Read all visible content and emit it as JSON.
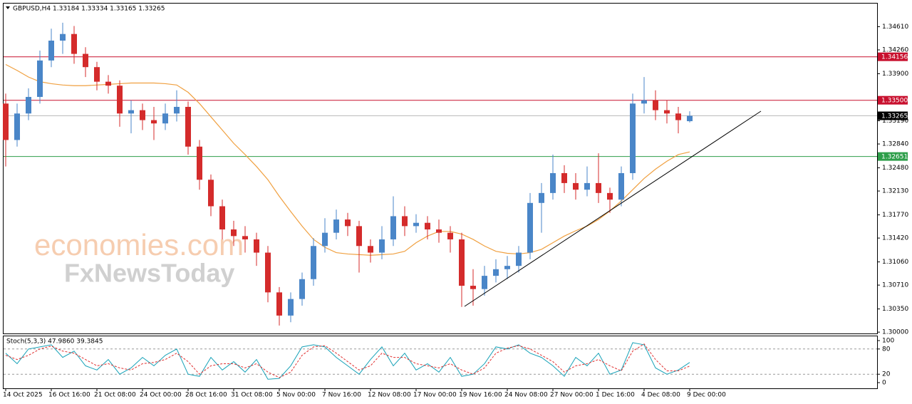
{
  "chart_data": [
    {
      "type": "candlestick",
      "title": "GBPUSD,H4  1.33184 1.33334 1.33165 1.33265",
      "watermark": [
        "economies.com",
        "FxNewsToday"
      ],
      "categories": [
        "14 Oct 2025",
        null,
        null,
        null,
        "16 Oct 16:00",
        null,
        null,
        null,
        "21 Oct 08:00",
        null,
        null,
        null,
        "24 Oct 00:00",
        null,
        null,
        null,
        "28 Oct 16:00",
        null,
        null,
        null,
        "31 Oct 08:00",
        null,
        null,
        null,
        "5 Nov 00:00",
        null,
        null,
        null,
        "7 Nov 16:00",
        null,
        null,
        null,
        "12 Nov 08:00",
        null,
        null,
        null,
        "17 Nov 00:00",
        null,
        null,
        null,
        "19 Nov 16:00",
        null,
        null,
        null,
        "24 Nov 08:00",
        null,
        null,
        null,
        "27 Nov 00:00",
        null,
        null,
        null,
        "1 Dec 16:00",
        null,
        null,
        null,
        "4 Dec 08:00",
        null,
        null,
        null,
        "9 Dec 00:00"
      ],
      "open": [
        1.3345,
        1.329,
        1.333,
        1.3355,
        1.341,
        1.344,
        1.345,
        1.342,
        1.34,
        1.3378,
        1.3372,
        1.333,
        1.3335,
        1.332,
        1.3315,
        1.333,
        1.334,
        1.328,
        1.323,
        1.319,
        1.3155,
        1.3145,
        1.314,
        1.312,
        1.306,
        1.3025,
        1.305,
        1.308,
        1.313,
        1.315,
        1.317,
        1.316,
        1.313,
        1.312,
        1.314,
        1.3175,
        1.316,
        1.3165,
        1.3155,
        1.315,
        1.314,
        1.307,
        1.3065,
        1.3085,
        1.3095,
        1.31,
        1.312,
        1.3195,
        1.321,
        1.324,
        1.3225,
        1.3215,
        1.3225,
        1.321,
        1.32,
        1.324,
        1.3345,
        1.335,
        1.3335,
        1.333,
        1.33184
      ],
      "high": [
        1.336,
        1.3345,
        1.3368,
        1.3425,
        1.3458,
        1.3467,
        1.3462,
        1.343,
        1.3408,
        1.3388,
        1.338,
        1.335,
        1.3345,
        1.334,
        1.3345,
        1.3365,
        1.3348,
        1.329,
        1.3238,
        1.32,
        1.3168,
        1.316,
        1.315,
        1.313,
        1.3068,
        1.306,
        1.309,
        1.3142,
        1.3172,
        1.3185,
        1.318,
        1.3168,
        1.314,
        1.316,
        1.3205,
        1.319,
        1.3178,
        1.3175,
        1.317,
        1.316,
        1.315,
        1.3095,
        1.31,
        1.311,
        1.3115,
        1.313,
        1.321,
        1.3225,
        1.3268,
        1.3252,
        1.324,
        1.325,
        1.327,
        1.3218,
        1.325,
        1.336,
        1.3385,
        1.3365,
        1.335,
        1.334,
        1.33334
      ],
      "low": [
        1.325,
        1.328,
        1.332,
        1.3345,
        1.34,
        1.342,
        1.3405,
        1.3385,
        1.3365,
        1.336,
        1.331,
        1.33,
        1.3305,
        1.329,
        1.3305,
        1.3318,
        1.3268,
        1.3215,
        1.3175,
        1.314,
        1.313,
        1.312,
        1.31,
        1.3045,
        1.301,
        1.3015,
        1.304,
        1.307,
        1.312,
        1.314,
        1.3145,
        1.309,
        1.3105,
        1.311,
        1.313,
        1.3145,
        1.315,
        1.314,
        1.3135,
        1.312,
        1.3038,
        1.304,
        1.3055,
        1.3075,
        1.308,
        1.309,
        1.311,
        1.315,
        1.32,
        1.321,
        1.32,
        1.3205,
        1.3195,
        1.318,
        1.319,
        1.323,
        1.333,
        1.332,
        1.3315,
        1.33,
        1.33165
      ],
      "close": [
        1.329,
        1.333,
        1.3355,
        1.341,
        1.344,
        1.345,
        1.342,
        1.34,
        1.3378,
        1.3372,
        1.333,
        1.3335,
        1.332,
        1.3315,
        1.333,
        1.334,
        1.328,
        1.323,
        1.319,
        1.3155,
        1.3145,
        1.314,
        1.312,
        1.306,
        1.3025,
        1.305,
        1.308,
        1.313,
        1.315,
        1.317,
        1.316,
        1.313,
        1.312,
        1.314,
        1.3175,
        1.316,
        1.3165,
        1.3155,
        1.315,
        1.314,
        1.307,
        1.3065,
        1.3085,
        1.3095,
        1.31,
        1.312,
        1.3195,
        1.321,
        1.324,
        1.3225,
        1.3215,
        1.3225,
        1.321,
        1.32,
        1.324,
        1.3345,
        1.335,
        1.3335,
        1.333,
        1.332,
        1.33265
      ],
      "up_color": "#4a86c8",
      "down_color": "#d42b2b",
      "ma": {
        "color": "#f0a040",
        "values": [
          1.3404,
          1.3395,
          1.3385,
          1.3378,
          1.3375,
          1.3373,
          1.3372,
          1.3372,
          1.3373,
          1.3374,
          1.3375,
          1.3376,
          1.3376,
          1.3376,
          1.3375,
          1.3373,
          1.3362,
          1.3345,
          1.3325,
          1.3305,
          1.3285,
          1.3268,
          1.325,
          1.323,
          1.3205,
          1.3182,
          1.316,
          1.314,
          1.3128,
          1.312,
          1.3118,
          1.3117,
          1.3116,
          1.3117,
          1.3118,
          1.3122,
          1.3135,
          1.3145,
          1.3152,
          1.3152,
          1.3148,
          1.314,
          1.313,
          1.3122,
          1.3119,
          1.3118,
          1.312,
          1.3125,
          1.3135,
          1.3145,
          1.3153,
          1.316,
          1.317,
          1.3183,
          1.3198,
          1.3215,
          1.3232,
          1.3246,
          1.3258,
          1.3268,
          1.3272
        ]
      },
      "levels": [
        {
          "value": 1.34156,
          "label": "1.34156",
          "color": "#c8102e"
        },
        {
          "value": 1.335,
          "label": "1.33500",
          "color": "#c8102e"
        },
        {
          "value": 1.33265,
          "label": "1.33265",
          "color": "#000000"
        },
        {
          "value": 1.32651,
          "label": "1.32651",
          "color": "#2e9e4a"
        }
      ],
      "ylim": [
        1.2998,
        1.3497
      ],
      "yticks": [
        {
          "value": 1.3461,
          "label": "1.34610"
        },
        {
          "value": 1.3426,
          "label": "1.34260"
        },
        {
          "value": 1.339,
          "label": "1.33900"
        },
        {
          "value": 1.3319,
          "label": "1.33190"
        },
        {
          "value": 1.3284,
          "label": "1.32840"
        },
        {
          "value": 1.3248,
          "label": "1.32480"
        },
        {
          "value": 1.3213,
          "label": "1.32130"
        },
        {
          "value": 1.3177,
          "label": "1.31770"
        },
        {
          "value": 1.3142,
          "label": "1.31420"
        },
        {
          "value": 1.3106,
          "label": "1.31060"
        },
        {
          "value": 1.3071,
          "label": "1.30710"
        },
        {
          "value": 1.3035,
          "label": "1.30350"
        },
        {
          "value": 1.3,
          "label": "1.30000"
        }
      ]
    },
    {
      "type": "stochastic",
      "title": "Stoch(5,3,3) 47.9860 39.3845",
      "series": [
        {
          "color": "#17a2b8",
          "values": [
            70,
            45,
            80,
            85,
            90,
            60,
            75,
            40,
            30,
            55,
            20,
            35,
            60,
            40,
            65,
            80,
            20,
            15,
            60,
            30,
            50,
            25,
            55,
            8,
            10,
            40,
            85,
            90,
            85,
            60,
            40,
            20,
            55,
            85,
            40,
            70,
            30,
            45,
            25,
            60,
            15,
            20,
            45,
            85,
            80,
            90,
            70,
            60,
            40,
            15,
            60,
            40,
            70,
            20,
            30,
            95,
            90,
            35,
            20,
            30,
            47.986
          ]
        },
        {
          "color": "#e03030",
          "dashed": true,
          "values": [
            65,
            55,
            65,
            80,
            87,
            75,
            70,
            55,
            40,
            45,
            35,
            30,
            45,
            48,
            55,
            70,
            50,
            20,
            40,
            45,
            45,
            35,
            45,
            25,
            12,
            25,
            65,
            85,
            88,
            70,
            50,
            30,
            40,
            70,
            60,
            60,
            45,
            40,
            35,
            45,
            30,
            20,
            35,
            70,
            82,
            88,
            80,
            65,
            50,
            25,
            40,
            45,
            55,
            40,
            28,
            75,
            92,
            55,
            28,
            28,
            39.3845
          ]
        }
      ],
      "levels": [
        80,
        20
      ],
      "ylim": [
        0,
        100
      ],
      "yticks": [
        100,
        80,
        20,
        0
      ]
    }
  ]
}
